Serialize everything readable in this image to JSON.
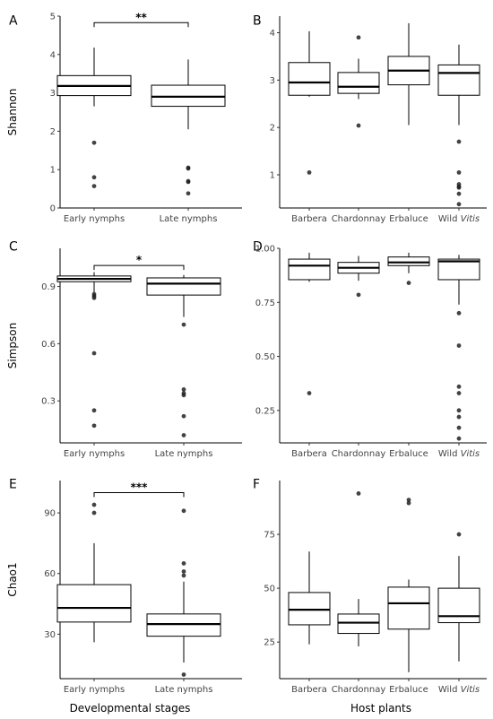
{
  "figure": {
    "xlabel_left": "Developmental stages",
    "xlabel_right": "Host plants"
  },
  "chart_data": [
    {
      "panel": "A",
      "type": "box",
      "ylabel": "Shannon",
      "ylim": [
        0,
        5
      ],
      "yticks": [
        0,
        1,
        2,
        3,
        4,
        5
      ],
      "categories": [
        "Early nymphs",
        "Late nymphs"
      ],
      "boxes": [
        {
          "whisker_low": 2.65,
          "q1": 2.93,
          "median": 3.18,
          "q3": 3.45,
          "whisker_high": 4.18,
          "outliers": [
            1.7,
            0.8,
            0.57
          ]
        },
        {
          "whisker_low": 2.05,
          "q1": 2.65,
          "median": 2.9,
          "q3": 3.2,
          "whisker_high": 3.87,
          "outliers": [
            1.05,
            1.03,
            0.7,
            0.68,
            0.38
          ]
        }
      ],
      "significance": {
        "text": "**",
        "from": 0,
        "to": 1,
        "y": 4.83
      }
    },
    {
      "panel": "B",
      "type": "box",
      "ylabel": "",
      "ylim": [
        0.3,
        4.35
      ],
      "yticks": [
        1,
        2,
        3,
        4
      ],
      "categories": [
        "Barbera",
        "Chardonnay",
        "Erbaluce",
        "Wild Vitis"
      ],
      "boxes": [
        {
          "whisker_low": 2.65,
          "q1": 2.68,
          "median": 2.95,
          "q3": 3.37,
          "whisker_high": 4.03,
          "outliers": [
            1.05
          ]
        },
        {
          "whisker_low": 2.6,
          "q1": 2.72,
          "median": 2.86,
          "q3": 3.16,
          "whisker_high": 3.45,
          "outliers": [
            3.9,
            2.04
          ]
        },
        {
          "whisker_low": 2.05,
          "q1": 2.9,
          "median": 3.2,
          "q3": 3.5,
          "whisker_high": 4.2,
          "outliers": []
        },
        {
          "whisker_low": 2.05,
          "q1": 2.68,
          "median": 3.15,
          "q3": 3.32,
          "whisker_high": 3.75,
          "outliers": [
            1.7,
            1.05,
            0.8,
            0.75,
            0.73,
            0.6,
            0.38
          ]
        }
      ]
    },
    {
      "panel": "C",
      "type": "box",
      "ylabel": "Simpson",
      "ylim": [
        0.08,
        1.1
      ],
      "yticks": [
        0.3,
        0.6,
        0.9
      ],
      "categories": [
        "Early nymphs",
        "Late nymphs"
      ],
      "boxes": [
        {
          "whisker_low": 0.87,
          "q1": 0.925,
          "median": 0.94,
          "q3": 0.955,
          "whisker_high": 0.975,
          "outliers": [
            0.86,
            0.85,
            0.84,
            0.55,
            0.25,
            0.17
          ]
        },
        {
          "whisker_low": 0.74,
          "q1": 0.855,
          "median": 0.915,
          "q3": 0.945,
          "whisker_high": 0.96,
          "outliers": [
            0.7,
            0.36,
            0.34,
            0.33,
            0.22,
            0.12
          ]
        }
      ],
      "significance": {
        "text": "*",
        "from": 0,
        "to": 1,
        "y": 1.01
      }
    },
    {
      "panel": "D",
      "type": "box",
      "ylabel": "",
      "ylim": [
        0.1,
        1.0
      ],
      "yticks": [
        0.25,
        0.5,
        0.75,
        1.0
      ],
      "categories": [
        "Barbera",
        "Chardonnay",
        "Erbaluce",
        "Wild Vitis"
      ],
      "boxes": [
        {
          "whisker_low": 0.845,
          "q1": 0.855,
          "median": 0.92,
          "q3": 0.95,
          "whisker_high": 0.98,
          "outliers": [
            0.33
          ]
        },
        {
          "whisker_low": 0.85,
          "q1": 0.885,
          "median": 0.91,
          "q3": 0.935,
          "whisker_high": 0.965,
          "outliers": [
            0.785
          ]
        },
        {
          "whisker_low": 0.885,
          "q1": 0.92,
          "median": 0.935,
          "q3": 0.96,
          "whisker_high": 0.98,
          "outliers": [
            0.84
          ]
        },
        {
          "whisker_low": 0.74,
          "q1": 0.855,
          "median": 0.94,
          "q3": 0.95,
          "whisker_high": 0.97,
          "outliers": [
            0.7,
            0.55,
            0.36,
            0.33,
            0.25,
            0.22,
            0.17,
            0.12
          ]
        }
      ]
    },
    {
      "panel": "E",
      "type": "box",
      "ylabel": "Chao1",
      "ylim": [
        8,
        106
      ],
      "yticks": [
        30,
        60,
        90
      ],
      "categories": [
        "Early nymphs",
        "Late nymphs"
      ],
      "boxes": [
        {
          "whisker_low": 26,
          "q1": 36,
          "median": 43,
          "q3": 54.5,
          "whisker_high": 75,
          "outliers": [
            94,
            90
          ]
        },
        {
          "whisker_low": 16,
          "q1": 29,
          "median": 35,
          "q3": 40,
          "whisker_high": 56,
          "outliers": [
            91,
            65,
            61,
            59,
            10
          ]
        }
      ],
      "significance": {
        "text": "***",
        "from": 0,
        "to": 1,
        "y": 100
      }
    },
    {
      "panel": "F",
      "type": "box",
      "ylabel": "",
      "ylim": [
        8,
        100
      ],
      "yticks": [
        25,
        50,
        75
      ],
      "categories": [
        "Barbera",
        "Chardonnay",
        "Erbaluce",
        "Wild Vitis"
      ],
      "boxes": [
        {
          "whisker_low": 24,
          "q1": 33,
          "median": 40,
          "q3": 48,
          "whisker_high": 67,
          "outliers": []
        },
        {
          "whisker_low": 23,
          "q1": 29,
          "median": 34,
          "q3": 38,
          "whisker_high": 45,
          "outliers": [
            94
          ]
        },
        {
          "whisker_low": 11,
          "q1": 31,
          "median": 43,
          "q3": 50.5,
          "whisker_high": 54,
          "outliers": [
            91,
            89.5
          ]
        },
        {
          "whisker_low": 16,
          "q1": 34,
          "median": 37,
          "q3": 50,
          "whisker_high": 65,
          "outliers": [
            75
          ]
        }
      ]
    }
  ]
}
